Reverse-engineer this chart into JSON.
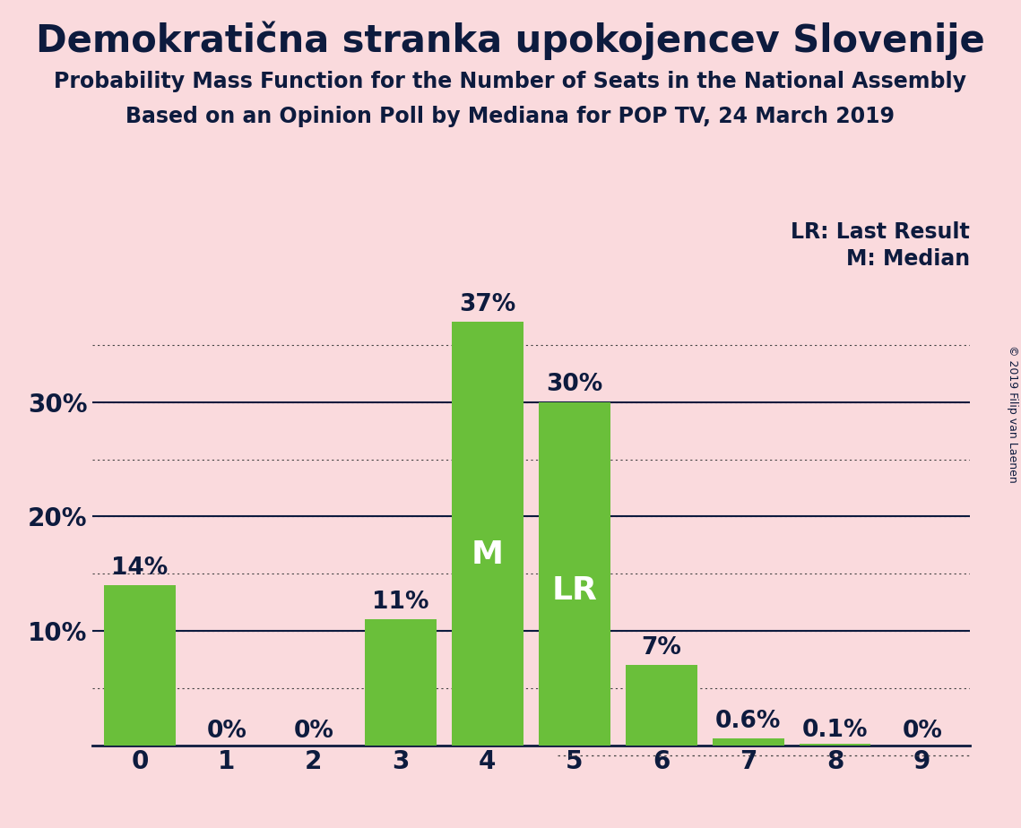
{
  "title": "Demokratična stranka upokojencev Slovenije",
  "subtitle1": "Probability Mass Function for the Number of Seats in the National Assembly",
  "subtitle2": "Based on an Opinion Poll by Mediana for POP TV, 24 March 2019",
  "copyright": "© 2019 Filip van Laenen",
  "categories": [
    0,
    1,
    2,
    3,
    4,
    5,
    6,
    7,
    8,
    9
  ],
  "values": [
    0.14,
    0.0,
    0.0,
    0.11,
    0.37,
    0.3,
    0.07,
    0.006,
    0.001,
    0.0
  ],
  "bar_labels": [
    "14%",
    "0%",
    "0%",
    "11%",
    "37%",
    "30%",
    "7%",
    "0.6%",
    "0.1%",
    "0%"
  ],
  "bar_color": "#6abf3a",
  "background_color": "#fadadd",
  "text_color": "#0d1b3e",
  "grid_color": "#444444",
  "median_bar": 4,
  "lr_bar": 5,
  "ylim": [
    0,
    0.42
  ],
  "xlim": [
    -0.55,
    9.55
  ],
  "annotation_lr": "LR",
  "annotation_m": "M",
  "legend_lr": "LR: Last Result",
  "legend_m": "M: Median",
  "title_fontsize": 30,
  "subtitle_fontsize": 17,
  "bar_label_fontsize": 19,
  "axis_tick_fontsize": 20,
  "legend_fontsize": 17,
  "inside_label_fontsize": 26,
  "copyright_fontsize": 9,
  "bar_width": 0.82
}
